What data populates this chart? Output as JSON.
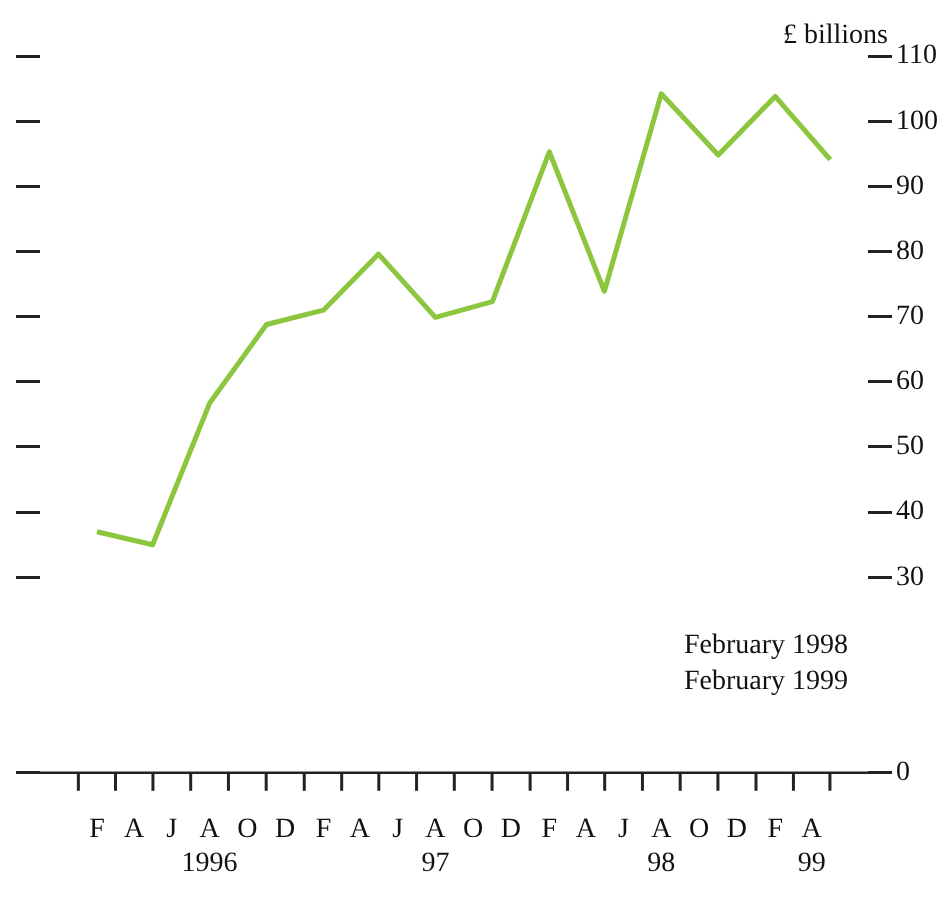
{
  "chart_data": {
    "type": "line",
    "ylabel": "£ billions",
    "x": [
      "1996-02",
      "1996-05",
      "1996-08",
      "1996-11",
      "1997-02",
      "1997-05",
      "1997-08",
      "1997-11",
      "1998-02",
      "1998-05",
      "1998-08",
      "1998-11",
      "1999-02",
      "1999-05"
    ],
    "series": [
      {
        "color": "#8cc63e",
        "values": [
          37,
          35,
          56.7,
          68.8,
          71,
          79.6,
          69.9,
          72.3,
          95.3,
          73.9,
          104.2,
          94.8,
          103.8,
          94.1
        ]
      }
    ],
    "xlim": [
      "1995-11",
      "1999-07"
    ],
    "xticks": [
      {
        "value": "1996-02",
        "label": "F"
      },
      {
        "value": "1996-04",
        "label": "A"
      },
      {
        "value": "1996-06",
        "label": "J"
      },
      {
        "value": "1996-08",
        "label": "A\n1996"
      },
      {
        "value": "1996-10",
        "label": "O"
      },
      {
        "value": "1996-12",
        "label": "D"
      },
      {
        "value": "1997-02",
        "label": "F"
      },
      {
        "value": "1997-04",
        "label": "A"
      },
      {
        "value": "1997-06",
        "label": "J"
      },
      {
        "value": "1997-08",
        "label": "A\n97"
      },
      {
        "value": "1997-10",
        "label": "O"
      },
      {
        "value": "1997-12",
        "label": "D"
      },
      {
        "value": "1998-02",
        "label": "F"
      },
      {
        "value": "1998-04",
        "label": "A"
      },
      {
        "value": "1998-06",
        "label": "J"
      },
      {
        "value": "1998-08",
        "label": "A\n98"
      },
      {
        "value": "1998-10",
        "label": "O"
      },
      {
        "value": "1998-12",
        "label": "D"
      },
      {
        "value": "1999-02",
        "label": "F"
      },
      {
        "value": "1999-04",
        "label": "A\n99"
      }
    ],
    "ylim": [
      0,
      110
    ],
    "yticks": [
      0,
      30,
      40,
      50,
      60,
      70,
      80,
      90,
      100,
      110
    ],
    "marker": "none",
    "legend": false,
    "annotations": [
      "February 1998",
      "February 1999"
    ]
  }
}
